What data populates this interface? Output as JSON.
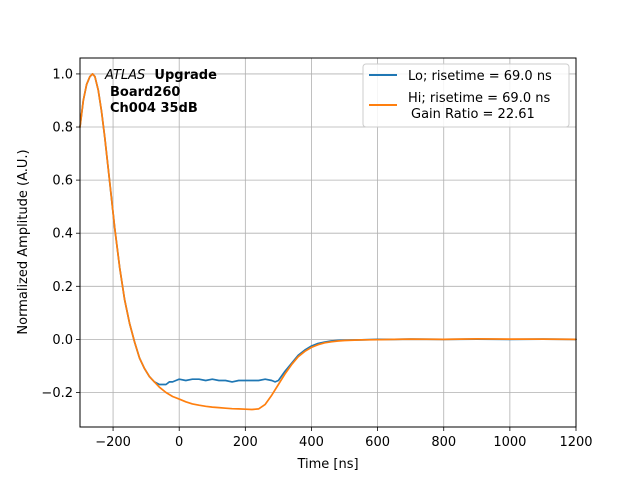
{
  "chart_data": {
    "type": "line",
    "xlabel": "Time [ns]",
    "ylabel": "Normalized Amplitude (A.U.)",
    "xlim": [
      -300,
      1200
    ],
    "ylim": [
      -0.33,
      1.06
    ],
    "xticks": [
      -200,
      0,
      200,
      400,
      600,
      800,
      1000,
      1200
    ],
    "xtick_labels": [
      "−200",
      "0",
      "200",
      "400",
      "600",
      "800",
      "1000",
      "1200"
    ],
    "yticks": [
      -0.2,
      0.0,
      0.2,
      0.4,
      0.6,
      0.8,
      1.0
    ],
    "ytick_labels": [
      "−0.2",
      "0.0",
      "0.2",
      "0.4",
      "0.6",
      "0.8",
      "1.0"
    ],
    "grid": true,
    "legend_position": "top-right",
    "annotation": {
      "experiment": "ATLAS",
      "tag": "Upgrade",
      "line2": "Board260",
      "line3": "Ch004 35dB"
    },
    "series": [
      {
        "name": "Lo; risetime = 69.0 ns",
        "color": "#1f77b4",
        "x": [
          -300,
          -290,
          -280,
          -270,
          -262,
          -255,
          -245,
          -235,
          -225,
          -210,
          -195,
          -180,
          -165,
          -150,
          -135,
          -120,
          -105,
          -90,
          -75,
          -60,
          -50,
          -40,
          -30,
          -20,
          -10,
          0,
          20,
          40,
          60,
          80,
          100,
          120,
          140,
          160,
          180,
          200,
          220,
          240,
          260,
          280,
          290,
          300,
          320,
          340,
          360,
          380,
          400,
          420,
          440,
          460,
          480,
          500,
          550,
          600,
          650,
          700,
          800,
          900,
          1000,
          1100,
          1200
        ],
        "y": [
          0.8,
          0.9,
          0.96,
          0.99,
          1.0,
          0.99,
          0.94,
          0.86,
          0.76,
          0.59,
          0.42,
          0.27,
          0.15,
          0.06,
          -0.01,
          -0.07,
          -0.11,
          -0.14,
          -0.16,
          -0.17,
          -0.17,
          -0.17,
          -0.16,
          -0.16,
          -0.155,
          -0.15,
          -0.155,
          -0.15,
          -0.15,
          -0.155,
          -0.15,
          -0.155,
          -0.155,
          -0.16,
          -0.155,
          -0.155,
          -0.155,
          -0.155,
          -0.15,
          -0.155,
          -0.16,
          -0.155,
          -0.12,
          -0.09,
          -0.06,
          -0.04,
          -0.025,
          -0.015,
          -0.01,
          -0.006,
          -0.004,
          -0.003,
          -0.002,
          0.0,
          0.0,
          0.001,
          0.0,
          0.001,
          0.0,
          0.001,
          0.0
        ]
      },
      {
        "name": "Hi; risetime = 69.0 ns",
        "name_line2": "Gain Ratio = 22.61",
        "color": "#ff7f0e",
        "x": [
          -300,
          -290,
          -280,
          -270,
          -262,
          -255,
          -245,
          -235,
          -225,
          -210,
          -195,
          -180,
          -165,
          -150,
          -135,
          -120,
          -105,
          -90,
          -75,
          -60,
          -40,
          -20,
          0,
          20,
          40,
          60,
          80,
          100,
          120,
          140,
          160,
          180,
          200,
          220,
          240,
          260,
          280,
          300,
          320,
          340,
          360,
          380,
          400,
          420,
          440,
          460,
          480,
          500,
          550,
          600,
          650,
          700,
          800,
          900,
          1000,
          1100,
          1200
        ],
        "y": [
          0.8,
          0.9,
          0.96,
          0.99,
          1.0,
          0.99,
          0.94,
          0.86,
          0.76,
          0.59,
          0.42,
          0.27,
          0.15,
          0.06,
          -0.01,
          -0.07,
          -0.11,
          -0.14,
          -0.16,
          -0.18,
          -0.2,
          -0.215,
          -0.225,
          -0.235,
          -0.243,
          -0.248,
          -0.252,
          -0.255,
          -0.257,
          -0.259,
          -0.261,
          -0.262,
          -0.263,
          -0.264,
          -0.262,
          -0.245,
          -0.21,
          -0.17,
          -0.13,
          -0.095,
          -0.065,
          -0.045,
          -0.03,
          -0.02,
          -0.013,
          -0.009,
          -0.006,
          -0.004,
          -0.002,
          -0.001,
          0.0,
          0.001,
          0.0,
          0.002,
          0.001,
          0.001,
          0.0
        ]
      }
    ]
  }
}
